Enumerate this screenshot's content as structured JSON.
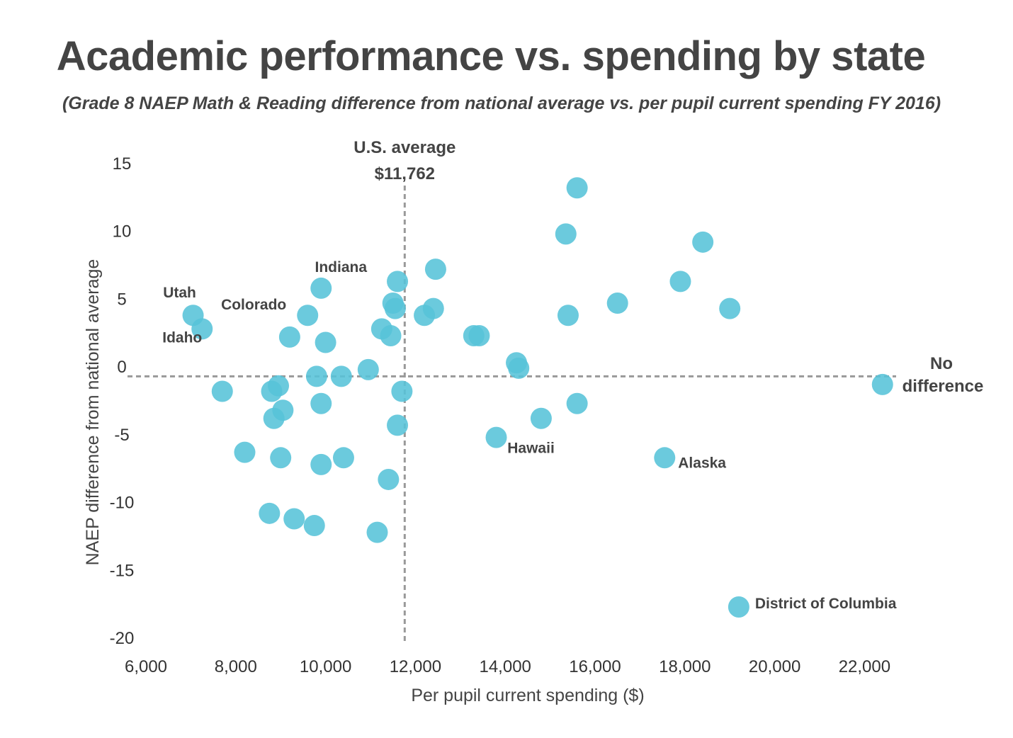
{
  "header": {
    "title": "Academic performance vs. spending by state",
    "subtitle": "(Grade 8 NAEP Math & Reading difference from national average vs. per pupil current spending FY 2016)"
  },
  "colors": {
    "point": "#56c3d8",
    "reference_line": "#999999",
    "text": "#444444"
  },
  "chart_data": {
    "type": "scatter",
    "title": "Academic performance vs. spending by state",
    "subtitle": "(Grade 8 NAEP Math & Reading difference from national average vs. per pupil current spending FY 2016)",
    "xlabel": "Per pupil current spending ($)",
    "ylabel": "NAEP difference from national average",
    "xlim": [
      6000,
      23000
    ],
    "ylim": [
      -20,
      15
    ],
    "x_ticks": [
      6000,
      8000,
      10000,
      12000,
      14000,
      16000,
      18000,
      20000,
      22000
    ],
    "x_tick_labels": [
      "6,000",
      "8,000",
      "10,000",
      "12,000",
      "14,000",
      "16,000",
      "18,000",
      "20,000",
      "22,000"
    ],
    "y_ticks": [
      15,
      10,
      5,
      0,
      -5,
      -10,
      -15,
      -20
    ],
    "y_tick_labels": [
      "15",
      "10",
      "5",
      "0",
      "-5",
      "-10",
      "-15",
      "-20"
    ],
    "grid": false,
    "reference_lines": {
      "vertical": {
        "x": 11762,
        "label_line1": "U.S. average",
        "label_line2": "$11,762"
      },
      "horizontal": {
        "y": -0.7,
        "label_line1": "No",
        "label_line2": "difference"
      }
    },
    "points": [
      {
        "x": 15600,
        "y": 13.2,
        "label": ""
      },
      {
        "x": 15350,
        "y": 9.8,
        "label": ""
      },
      {
        "x": 18400,
        "y": 9.2,
        "label": ""
      },
      {
        "x": 12450,
        "y": 7.2,
        "label": ""
      },
      {
        "x": 11600,
        "y": 6.3,
        "label": ""
      },
      {
        "x": 17900,
        "y": 6.3,
        "label": ""
      },
      {
        "x": 9900,
        "y": 5.8,
        "label": "Indiana"
      },
      {
        "x": 16500,
        "y": 4.7,
        "label": ""
      },
      {
        "x": 11500,
        "y": 4.7,
        "label": ""
      },
      {
        "x": 11550,
        "y": 4.3,
        "label": ""
      },
      {
        "x": 12400,
        "y": 4.3,
        "label": ""
      },
      {
        "x": 19000,
        "y": 4.3,
        "label": ""
      },
      {
        "x": 12200,
        "y": 3.8,
        "label": ""
      },
      {
        "x": 15400,
        "y": 3.8,
        "label": ""
      },
      {
        "x": 9600,
        "y": 3.8,
        "label": "Colorado"
      },
      {
        "x": 7050,
        "y": 3.8,
        "label": "Utah"
      },
      {
        "x": 7250,
        "y": 2.8,
        "label": "Idaho"
      },
      {
        "x": 11250,
        "y": 2.8,
        "label": ""
      },
      {
        "x": 11450,
        "y": 2.3,
        "label": ""
      },
      {
        "x": 13300,
        "y": 2.3,
        "label": ""
      },
      {
        "x": 13420,
        "y": 2.3,
        "label": ""
      },
      {
        "x": 9200,
        "y": 2.2,
        "label": ""
      },
      {
        "x": 10000,
        "y": 1.8,
        "label": ""
      },
      {
        "x": 14250,
        "y": 0.3,
        "label": ""
      },
      {
        "x": 10950,
        "y": -0.2,
        "label": ""
      },
      {
        "x": 14300,
        "y": -0.1,
        "label": ""
      },
      {
        "x": 9800,
        "y": -0.7,
        "label": ""
      },
      {
        "x": 10350,
        "y": -0.7,
        "label": ""
      },
      {
        "x": 8950,
        "y": -1.4,
        "label": ""
      },
      {
        "x": 22400,
        "y": -1.3,
        "label": ""
      },
      {
        "x": 7700,
        "y": -1.8,
        "label": ""
      },
      {
        "x": 8800,
        "y": -1.8,
        "label": ""
      },
      {
        "x": 11700,
        "y": -1.8,
        "label": ""
      },
      {
        "x": 9900,
        "y": -2.7,
        "label": ""
      },
      {
        "x": 15600,
        "y": -2.7,
        "label": ""
      },
      {
        "x": 9050,
        "y": -3.2,
        "label": ""
      },
      {
        "x": 8850,
        "y": -3.8,
        "label": ""
      },
      {
        "x": 14800,
        "y": -3.8,
        "label": ""
      },
      {
        "x": 11600,
        "y": -4.3,
        "label": ""
      },
      {
        "x": 13800,
        "y": -5.2,
        "label": "Hawaii"
      },
      {
        "x": 8200,
        "y": -6.3,
        "label": ""
      },
      {
        "x": 9000,
        "y": -6.7,
        "label": ""
      },
      {
        "x": 10400,
        "y": -6.7,
        "label": ""
      },
      {
        "x": 17550,
        "y": -6.7,
        "label": "Alaska"
      },
      {
        "x": 9900,
        "y": -7.2,
        "label": ""
      },
      {
        "x": 11400,
        "y": -8.3,
        "label": ""
      },
      {
        "x": 8750,
        "y": -10.8,
        "label": ""
      },
      {
        "x": 9300,
        "y": -11.2,
        "label": ""
      },
      {
        "x": 9750,
        "y": -11.7,
        "label": ""
      },
      {
        "x": 11150,
        "y": -12.2,
        "label": ""
      },
      {
        "x": 19200,
        "y": -17.7,
        "label": "District of Columbia"
      }
    ]
  }
}
